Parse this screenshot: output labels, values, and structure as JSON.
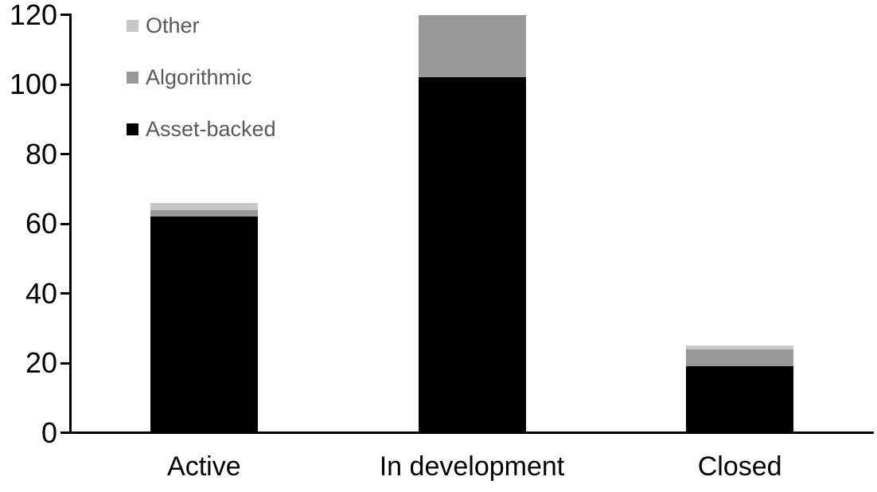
{
  "chart_data": {
    "type": "bar",
    "stacked": true,
    "title": "",
    "xlabel": "",
    "ylabel": "",
    "categories": [
      "Active",
      "In development",
      "Closed"
    ],
    "series": [
      {
        "name": "Asset-backed",
        "color": "#000000",
        "values": [
          62,
          102,
          19
        ]
      },
      {
        "name": "Algorithmic",
        "color": "#989898",
        "values": [
          2,
          18,
          5
        ]
      },
      {
        "name": "Other",
        "color": "#c7c7c7",
        "values": [
          2,
          0,
          1
        ]
      }
    ],
    "ylim": [
      0,
      120
    ],
    "yticks": [
      0,
      20,
      40,
      60,
      80,
      100,
      120
    ],
    "grid": false,
    "axis_color": "#000000",
    "legend": {
      "position": "top-left",
      "order": [
        "Other",
        "Algorithmic",
        "Asset-backed"
      ],
      "text_color": "#595959"
    }
  }
}
